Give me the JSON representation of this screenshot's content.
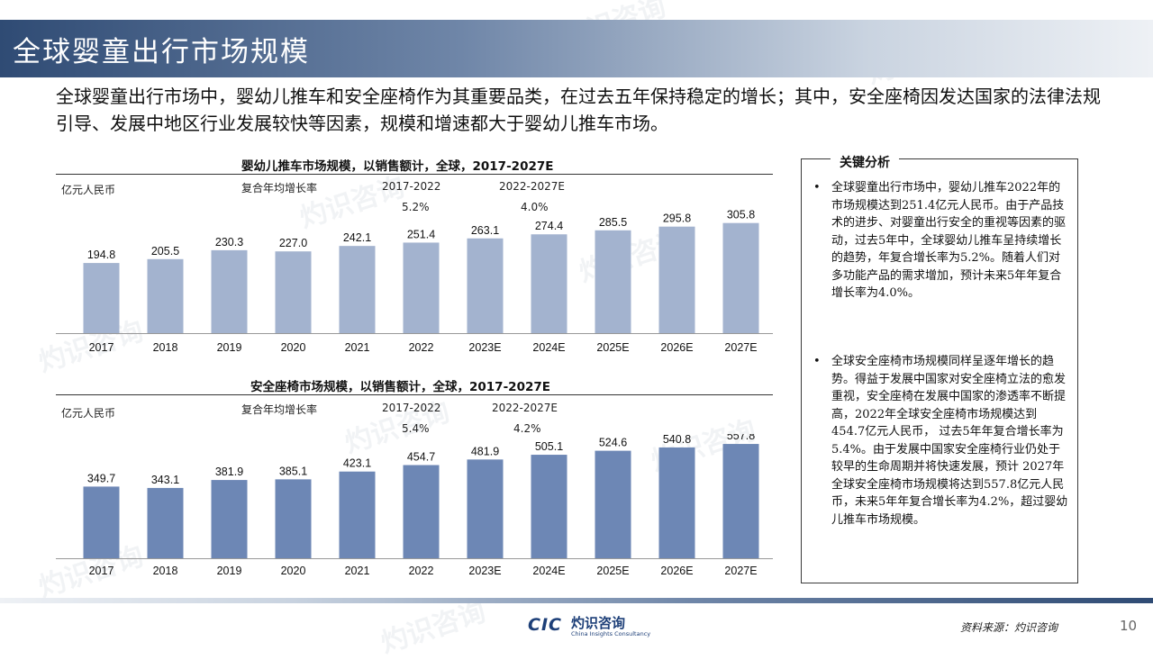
{
  "header": {
    "title": "全球婴童出行市场规模"
  },
  "intro": "全球婴童出行市场中，婴幼儿推车和安全座椅作为其重要品类，在过去五年保持稳定的增长；其中，安全座椅因发达国家的法律法规引导、发展中地区行业发展较快等因素，规模和增速都大于婴幼儿推车市场。",
  "colors": {
    "bar1": "#a3b3cf",
    "bar2": "#6d87b5",
    "title_bar": "#2f4b74"
  },
  "chart_data": [
    {
      "type": "bar",
      "title": "婴幼儿推车市场规模，以销售额计，全球，2017-2027E",
      "ylabel": "亿元人民币",
      "cagr_label": "复合年均增长率",
      "cagr": [
        {
          "period": "2017-2022",
          "value": "5.2%"
        },
        {
          "period": "2022-2027E",
          "value": "4.0%"
        }
      ],
      "categories": [
        "2017",
        "2018",
        "2019",
        "2020",
        "2021",
        "2022",
        "2023E",
        "2024E",
        "2025E",
        "2026E",
        "2027E"
      ],
      "values": [
        194.8,
        205.5,
        230.3,
        227.0,
        242.1,
        251.4,
        263.1,
        274.4,
        285.5,
        295.8,
        305.8
      ],
      "value_labels": [
        "194.8",
        "205.5",
        "230.3",
        "227.0",
        "242.1",
        "251.4",
        "263.1",
        "274.4",
        "285.5",
        "295.8",
        "305.8"
      ],
      "ylim": [
        0,
        320
      ]
    },
    {
      "type": "bar",
      "title": "安全座椅市场规模，以销售额计，全球，2017-2027E",
      "ylabel": "亿元人民币",
      "cagr_label": "复合年均增长率",
      "cagr": [
        {
          "period": "2017-2022",
          "value": "5.4%"
        },
        {
          "period": "2022-2027E",
          "value": "4.2%"
        }
      ],
      "categories": [
        "2017",
        "2018",
        "2019",
        "2020",
        "2021",
        "2022",
        "2023E",
        "2024E",
        "2025E",
        "2026E",
        "2027E"
      ],
      "values": [
        349.7,
        343.1,
        381.9,
        385.1,
        423.1,
        454.7,
        481.9,
        505.1,
        524.6,
        540.8,
        557.8
      ],
      "value_labels": [
        "349.7",
        "343.1",
        "381.9",
        "385.1",
        "423.1",
        "454.7",
        "481.9",
        "505.1",
        "524.6",
        "540.8",
        "557.8"
      ],
      "ylim": [
        0,
        580
      ]
    }
  ],
  "sidebar": {
    "heading": "关键分析",
    "bullet_char": "•",
    "bullets": [
      "全球婴童出行市场中，婴幼儿推车2022年的市场规模达到251.4亿元人民币。由于产品技术的进步、对婴童出行安全的重视等因素的驱动，过去5年中，全球婴幼儿推车呈持续增长的趋势，年复合增长率为5.2%。随着人们对多功能产品的需求增加，预计未来5年年复合增长率为4.0%。",
      "全球安全座椅市场规模同样呈逐年增长的趋势。得益于发展中国家对安全座椅立法的愈发重视，安全座椅在发展中国家的渗透率不断提高，2022年全球安全座椅市场规模达到454.7亿元人民币， 过去5年年复合增长率为5.4%。由于发展中国家安全座椅行业仍处于较早的生命周期并将快速发展，预计 2027年全球安全座椅市场规模将达到557.8亿元人民币，未来5年年复合增长率为4.2%，超过婴幼儿推车市场规模。"
    ]
  },
  "footer": {
    "logo_text": "CIC",
    "logo_cn": "灼识咨询",
    "logo_en": "China Insights Consultancy",
    "source": "资料来源：灼识咨询",
    "page": "10"
  },
  "watermark": {
    "cn": "灼识咨询",
    "en": "China Insights Consultancy"
  }
}
